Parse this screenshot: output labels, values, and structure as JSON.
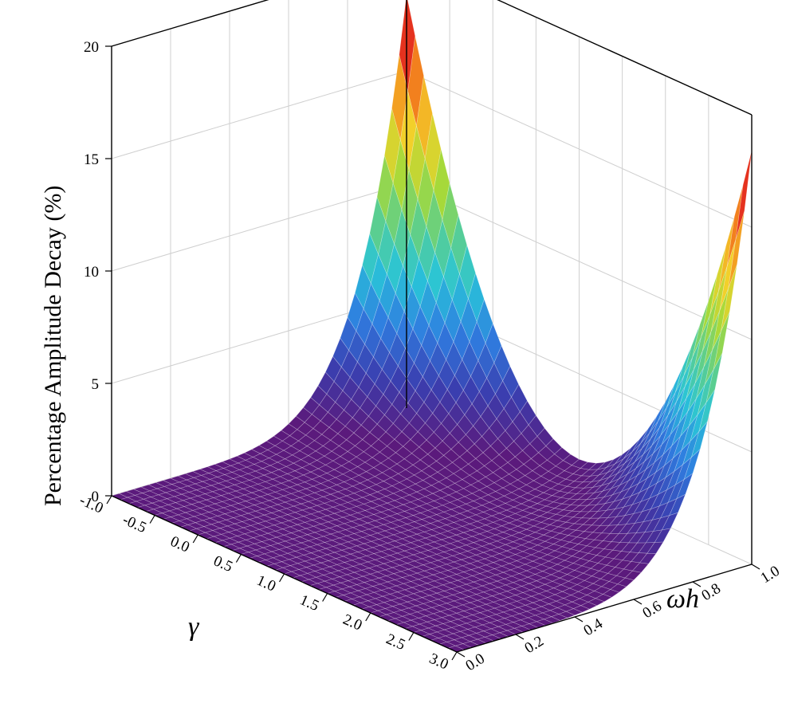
{
  "chart_data": {
    "type": "surface3d",
    "title": "",
    "zlabel": "Percentage Amplitude Decay (%)",
    "xlabel": "γ",
    "ylabel": "ωh",
    "xlim": [
      -1.0,
      3.0
    ],
    "ylim": [
      0.0,
      1.0
    ],
    "zlim": [
      0,
      20
    ],
    "x_ticks": [
      "-1.0",
      "-0.5",
      "0.0",
      "0.5",
      "1.0",
      "1.5",
      "2.0",
      "2.5",
      "3.0"
    ],
    "y_ticks": [
      "0.0",
      "0.2",
      "0.4",
      "0.6",
      "0.8",
      "1.0"
    ],
    "z_ticks": [
      "0",
      "5",
      "10",
      "15",
      "20"
    ],
    "grid": true,
    "colormap": [
      "#5b1a7c",
      "#3a3fb0",
      "#2f7de0",
      "#29c4d8",
      "#5fcf8a",
      "#a6d93a",
      "#f2d12a",
      "#f48a1e",
      "#e3261e",
      "#b01a1a"
    ],
    "corner_values": [
      {
        "x": -1.0,
        "y": 0.0,
        "z": 0.0
      },
      {
        "x": 3.0,
        "y": 0.0,
        "z": 0.0
      },
      {
        "x": -1.0,
        "y": 1.0,
        "z": 18.5
      },
      {
        "x": 3.0,
        "y": 1.0,
        "z": 18.5
      },
      {
        "x": 1.0,
        "y": 1.0,
        "z": 1.2
      }
    ]
  }
}
